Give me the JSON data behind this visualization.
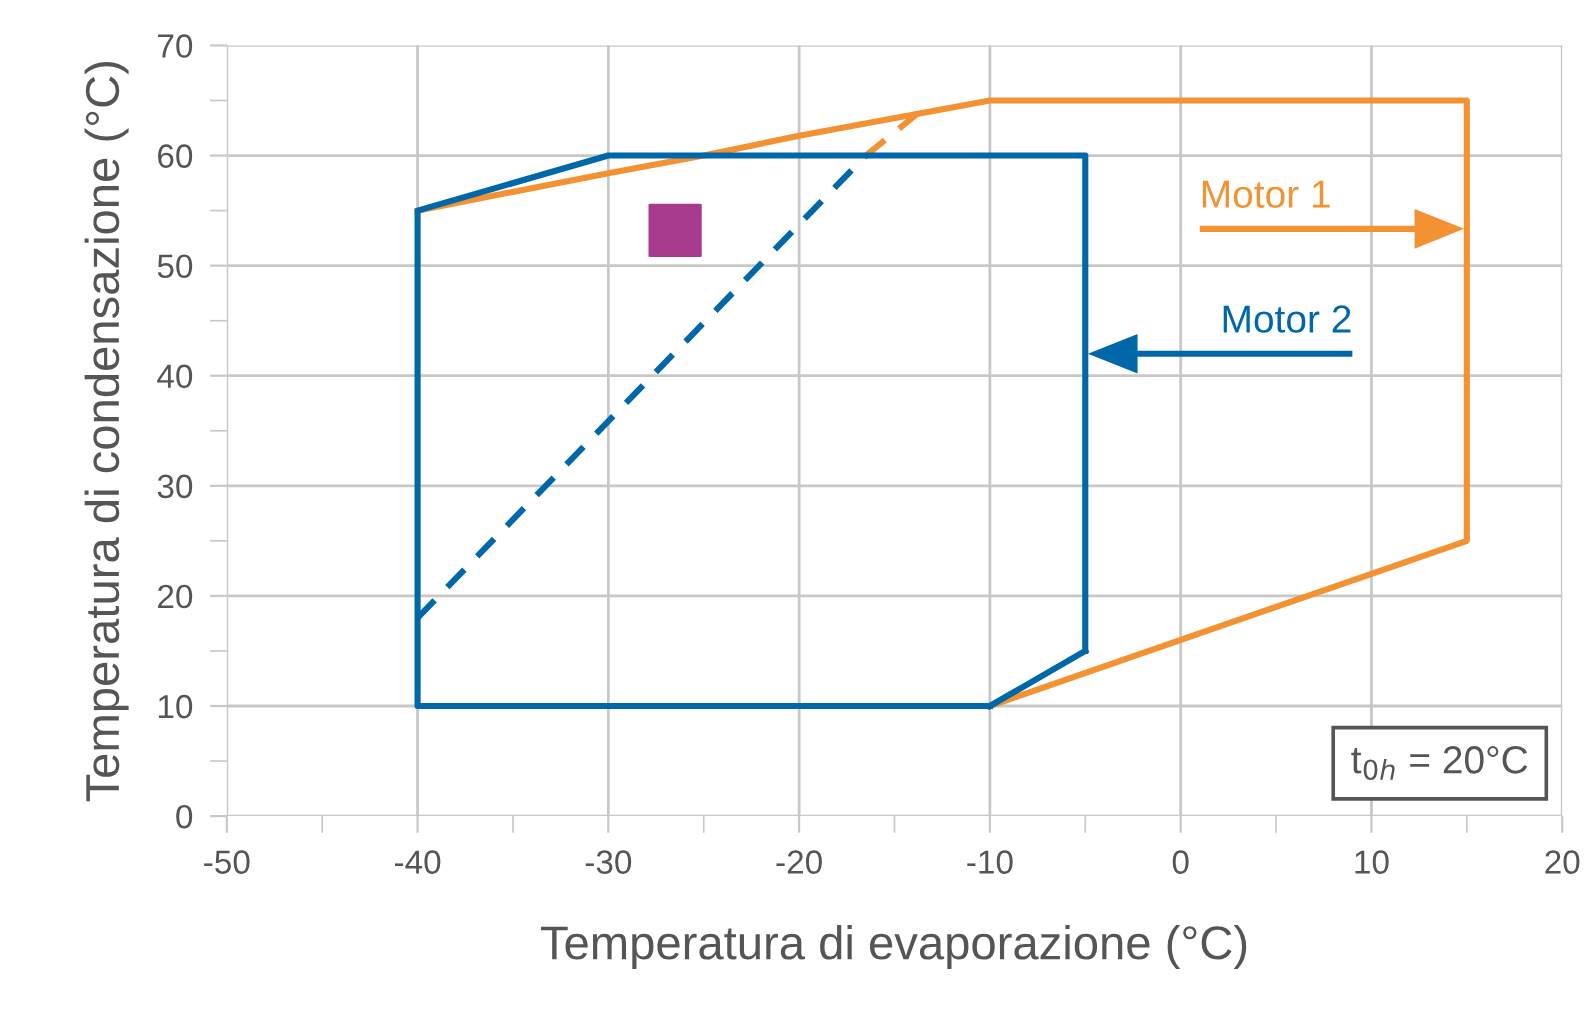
{
  "chart_data": {
    "type": "line",
    "xlabel": "Temperatura di evaporazione (°C)",
    "ylabel": "Temperatura di condensazione (°C)",
    "series": [
      {
        "name": "Motor 1",
        "color": "#f39233",
        "x": [
          -10,
          15,
          15,
          -10,
          -20,
          -25,
          -30,
          -40
        ],
        "values": [
          10,
          25,
          65,
          65,
          61.8,
          60,
          58.4,
          55
        ]
      },
      {
        "color": "#f39233",
        "line_style": "dashed",
        "x": [
          -16.5,
          -13.8
        ],
        "values": [
          60,
          63.8
        ]
      },
      {
        "name": "Motor 2",
        "color": "#0067a8",
        "x": [
          -10,
          -40,
          -40,
          -30,
          -5,
          -5
        ],
        "values": [
          10,
          10,
          55,
          60,
          60,
          15
        ]
      },
      {
        "color": "#0067a8",
        "x": [
          -5,
          -10
        ],
        "values": [
          15,
          10
        ]
      },
      {
        "color": "#0067a8",
        "line_style": "dashed",
        "x": [
          -40,
          -16.5
        ],
        "values": [
          18,
          60
        ]
      },
      {
        "type": "scatter",
        "marker": "square",
        "color": "#a83a8c",
        "x": [
          -26.5
        ],
        "values": [
          53.2
        ]
      }
    ],
    "annotations": [
      "t$_{0h}$ = 20°C"
    ],
    "xlim": [
      -50,
      20
    ],
    "xticks": [
      -50,
      {
        "value": -45,
        "label": null
      },
      -40,
      {
        "value": -35,
        "label": null
      },
      -30,
      {
        "value": -25,
        "label": null
      },
      -20,
      {
        "value": -15,
        "label": null
      },
      -10,
      {
        "value": -5,
        "label": null
      },
      0,
      {
        "value": 5,
        "label": null
      },
      10,
      {
        "value": 15,
        "label": null
      },
      20
    ],
    "ylim": [
      0,
      70
    ],
    "yticks": [
      0,
      {
        "value": 5,
        "label": null
      },
      10,
      {
        "value": 15,
        "label": null
      },
      20,
      {
        "value": 25,
        "label": null
      },
      30,
      {
        "value": 35,
        "label": null
      },
      40,
      {
        "value": 45,
        "label": null
      },
      50,
      {
        "value": 55,
        "label": null
      },
      60,
      {
        "value": 65,
        "label": null
      },
      70
    ],
    "grid": true,
    "marker": "none",
    "line_style": "solid"
  }
}
